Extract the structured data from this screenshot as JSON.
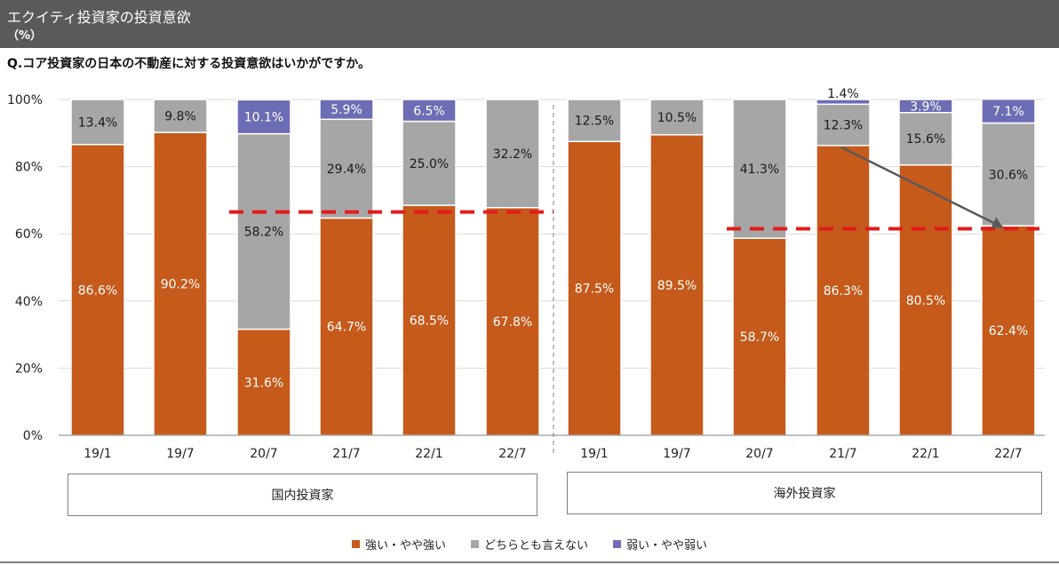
{
  "header": {
    "title": "エクイティ投資家の投資意欲",
    "unit": "（%）"
  },
  "question": "Q.コア投資家の日本の不動産に対する投資意欲はいかがですか。",
  "colors": {
    "strong": "#c55a1b",
    "neutral": "#a6a6a6",
    "weak": "#6d6db5",
    "dashed_line": "#e31b1b",
    "arrow": "#595959",
    "header_bg": "#5a5a5a"
  },
  "groups": [
    {
      "label": "国内投資家"
    },
    {
      "label": "海外投資家"
    }
  ],
  "chart_data": {
    "type": "bar",
    "stacked": true,
    "ylim": [
      0,
      100
    ],
    "yticks": [
      0,
      20,
      40,
      60,
      80,
      100
    ],
    "ytick_labels": [
      "0%",
      "20%",
      "40%",
      "60%",
      "80%",
      "100%"
    ],
    "categories": [
      "19/1",
      "19/7",
      "20/7",
      "21/7",
      "22/1",
      "22/7",
      "19/1",
      "19/7",
      "20/7",
      "21/7",
      "22/1",
      "22/7"
    ],
    "series": [
      {
        "name": "強い・やや強い",
        "key": "strong",
        "values": [
          86.6,
          90.2,
          31.6,
          64.7,
          68.5,
          67.8,
          87.5,
          89.5,
          58.7,
          86.3,
          80.5,
          62.4
        ],
        "labels": [
          "86.6%",
          "90.2%",
          "31.6%",
          "64.7%",
          "68.5%",
          "67.8%",
          "87.5%",
          "89.5%",
          "58.7%",
          "86.3%",
          "80.5%",
          "62.4%"
        ]
      },
      {
        "name": "どちらとも言えない",
        "key": "neutral",
        "values": [
          13.4,
          9.8,
          58.2,
          29.4,
          25.0,
          32.2,
          12.5,
          10.5,
          41.3,
          12.3,
          15.6,
          30.6
        ],
        "labels": [
          "13.4%",
          "9.8%",
          "58.2%",
          "29.4%",
          "25.0%",
          "32.2%",
          "12.5%",
          "10.5%",
          "41.3%",
          "12.3%",
          "15.6%",
          "30.6%"
        ]
      },
      {
        "name": "弱い・やや弱い",
        "key": "weak",
        "values": [
          0,
          0,
          10.1,
          5.9,
          6.5,
          0,
          0,
          0,
          0,
          1.4,
          3.9,
          7.1
        ],
        "labels": [
          "",
          "",
          "10.1%",
          "5.9%",
          "6.5%",
          "",
          "",
          "",
          "",
          "1.4%",
          "3.9%",
          "7.1%"
        ]
      }
    ],
    "reference_lines": [
      {
        "group": "国内投資家",
        "value": 66.5,
        "style": "dashed"
      },
      {
        "group": "海外投資家",
        "value": 61.5,
        "style": "dashed"
      }
    ],
    "arrow": {
      "from_category_index": 9,
      "from_value": 86.3,
      "to_category_index": 11,
      "to_value": 62.4
    },
    "legend": [
      "強い・やや強い",
      "どちらとも言えない",
      "弱い・やや弱い"
    ],
    "legend_position": "bottom"
  }
}
